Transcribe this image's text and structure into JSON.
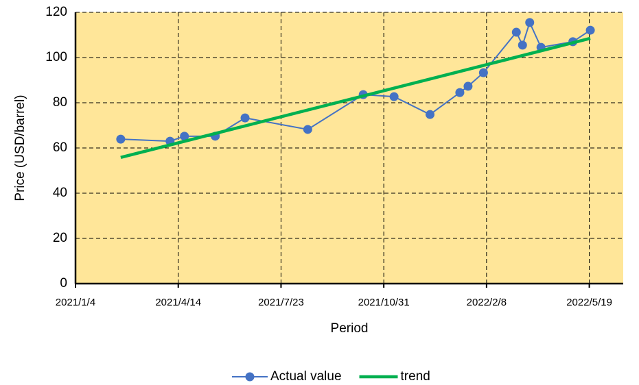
{
  "chart_data": {
    "type": "line",
    "x_label": "Period",
    "y_label": "Price (USD/barrel)",
    "series": [
      {
        "name": "Actual value",
        "color": "#4472c4",
        "marker": "circle",
        "x": [
          "2021/2/17",
          "2021/4/6",
          "2021/4/20",
          "2021/5/20",
          "2021/6/18",
          "2021/8/18",
          "2021/10/11",
          "2021/11/10",
          "2021/12/15",
          "2022/1/13",
          "2022/1/21",
          "2022/2/5",
          "2022/3/9",
          "2022/3/15",
          "2022/3/22",
          "2022/4/2",
          "2022/5/3",
          "2022/5/20"
        ],
        "values": [
          63.9,
          63.0,
          65.2,
          65.2,
          73.3,
          68.2,
          83.6,
          82.7,
          74.8,
          84.5,
          87.3,
          93.3,
          111.2,
          105.5,
          115.5,
          104.5,
          107.0,
          112.1
        ]
      },
      {
        "name": "trend",
        "color": "#00b050",
        "x": [
          "2021/2/17",
          "2022/5/20"
        ],
        "values": [
          55.8,
          108.5
        ]
      }
    ],
    "xlim": [
      "2021/1/4",
      "2022/6/21"
    ],
    "xticks": [
      "2021/1/4",
      "2021/4/14",
      "2021/7/23",
      "2021/10/31",
      "2022/2/8",
      "2022/5/19"
    ],
    "ylim": [
      0,
      120
    ],
    "yticks": [
      0,
      20,
      40,
      60,
      80,
      100,
      120
    ],
    "grid": true,
    "background": "#ffe699",
    "legend": "bottom"
  }
}
